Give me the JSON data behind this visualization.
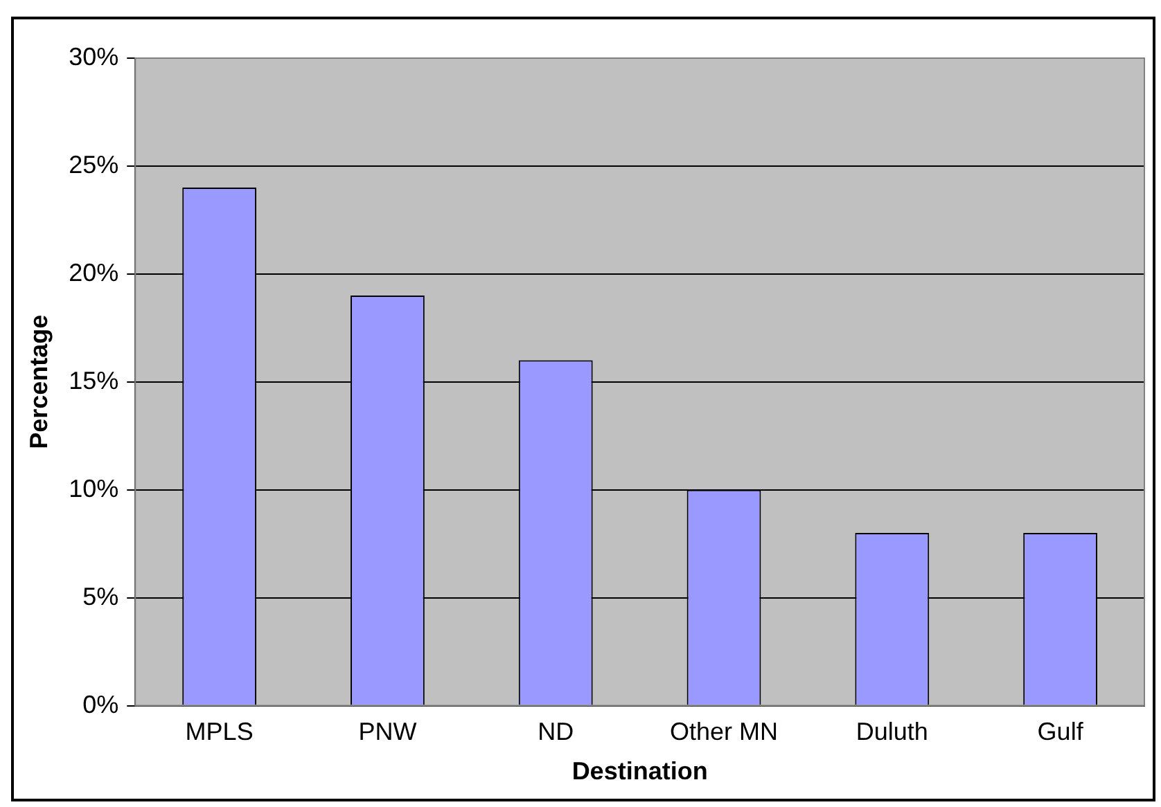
{
  "chart_data": {
    "type": "bar",
    "xlabel": "Destination",
    "ylabel": "Percentage",
    "categories": [
      "MPLS",
      "PNW",
      "ND",
      "Other MN",
      "Duluth",
      "Gulf"
    ],
    "values": [
      24,
      19,
      16,
      10,
      8,
      8
    ],
    "color": "#9999ff",
    "ylim": [
      0,
      30
    ],
    "yticks": [
      {
        "value": 0,
        "label": "0%"
      },
      {
        "value": 5,
        "label": "5%"
      },
      {
        "value": 10,
        "label": "10%"
      },
      {
        "value": 15,
        "label": "15%"
      },
      {
        "value": 20,
        "label": "20%"
      },
      {
        "value": 25,
        "label": "25%"
      },
      {
        "value": 30,
        "label": "30%"
      }
    ],
    "grid": "y",
    "legend": false
  }
}
